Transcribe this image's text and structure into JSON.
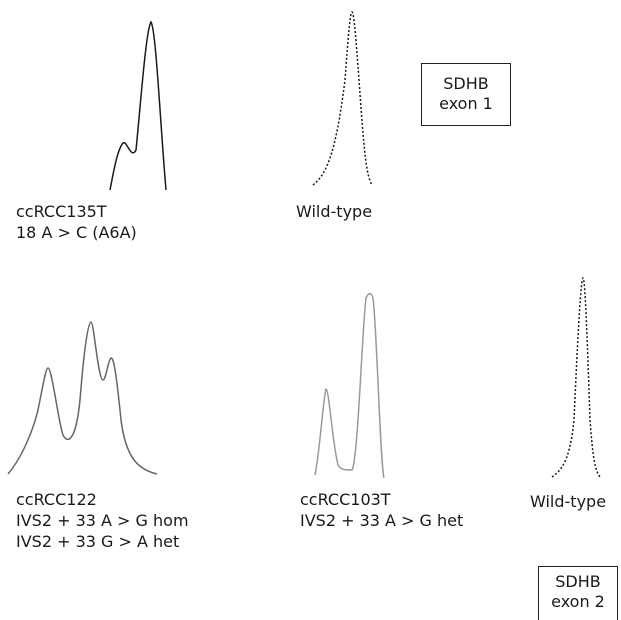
{
  "sections": [
    {
      "box": {
        "line1": "SDHB",
        "line2": "exon 1"
      },
      "traces": [
        {
          "label_lines": [
            "ccRCC135T",
            "18 A > C (A6A)"
          ],
          "color": "#1a1a1a",
          "style": "solid"
        },
        {
          "label_lines": [
            "Wild-type"
          ],
          "color": "#1a1a1a",
          "style": "dotted"
        }
      ]
    },
    {
      "box": {
        "line1": "SDHB",
        "line2": "exon 2"
      },
      "traces": [
        {
          "label_lines": [
            "ccRCC122",
            "IVS2 + 33 A > G hom",
            "IVS2 + 33 G > A het"
          ],
          "color": "#666666",
          "style": "solid"
        },
        {
          "label_lines": [
            "ccRCC103T",
            "IVS2 + 33 A > G het"
          ],
          "color": "#9a9a9a",
          "style": "solid"
        },
        {
          "label_lines": [
            "Wild-type"
          ],
          "color": "#1a1a1a",
          "style": "dotted"
        }
      ]
    }
  ]
}
